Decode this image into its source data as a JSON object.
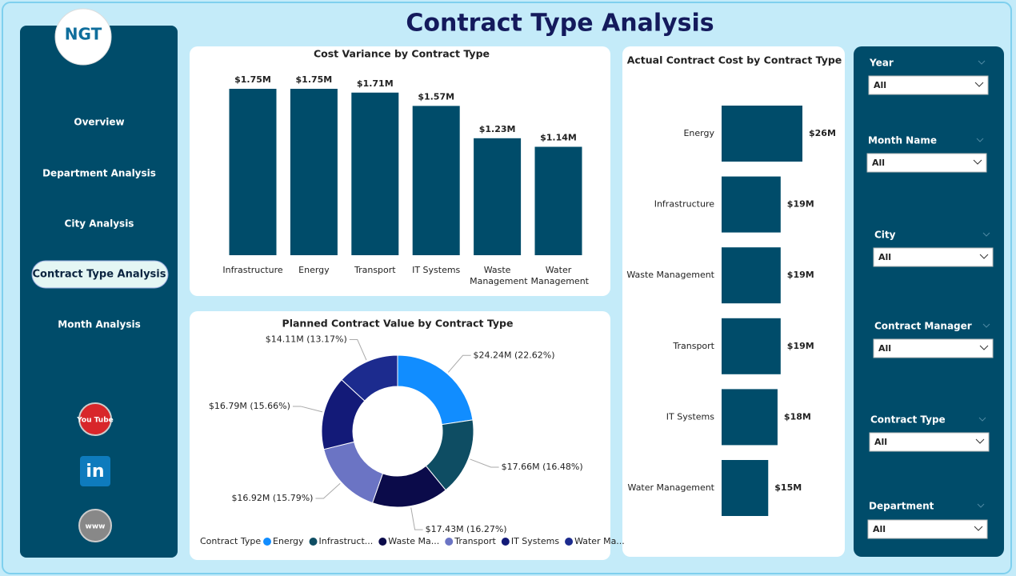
{
  "title": "Contract Type Analysis",
  "logo": {
    "text": "NGT"
  },
  "nav": [
    "Overview",
    "Department Analysis",
    "City Analysis",
    "Contract Type Analysis",
    "Month Analysis"
  ],
  "icons": [
    "You Tube",
    "in",
    "www"
  ],
  "filters": [
    {
      "label": "Year",
      "value": "All"
    },
    {
      "label": "Month Name",
      "value": "All"
    },
    {
      "label": "City",
      "value": "All"
    },
    {
      "label": "Contract Manager",
      "value": "All"
    },
    {
      "label": "Contract Type",
      "value": "All"
    },
    {
      "label": "Department",
      "value": "All"
    }
  ],
  "chart_data": [
    {
      "type": "bar",
      "title": "Cost Variance by Contract Type",
      "color": "#004c6a",
      "categories": [
        "Infrastructure",
        "Energy",
        "Transport",
        "IT Systems",
        "Waste Management",
        "Water Management"
      ],
      "values": [
        1.75,
        1.75,
        1.71,
        1.57,
        1.23,
        1.14
      ],
      "value_labels": [
        "$1.75M",
        "$1.75M",
        "$1.71M",
        "$1.57M",
        "$1.23M",
        "$1.14M"
      ]
    },
    {
      "type": "barh",
      "title": "Actual Contract Cost by Contract Type",
      "color": "#004c6a",
      "categories": [
        "Energy",
        "Infrastructure",
        "Waste Management",
        "Transport",
        "IT Systems",
        "Water Management"
      ],
      "values": [
        26,
        19,
        19,
        19,
        18,
        15
      ],
      "value_labels": [
        "$26M",
        "$19M",
        "$19M",
        "$19M",
        "$18M",
        "$15M"
      ]
    },
    {
      "type": "donut",
      "title": "Planned Contract Value by Contract Type",
      "legend_title": "Contract Type",
      "categories": [
        "Energy",
        "Infrastruct...",
        "Waste Ma...",
        "Transport",
        "IT Systems",
        "Water Ma..."
      ],
      "colors": [
        "#118dff",
        "#0e4d63",
        "#0b0b4a",
        "#6b74c4",
        "#131a78",
        "#1c2b8e"
      ],
      "values": [
        24.24,
        17.66,
        17.43,
        16.92,
        16.79,
        14.11
      ],
      "value_labels": [
        "$24.24M (22.62%)",
        "$17.66M (16.48%)",
        "$17.43M (16.27%)",
        "$16.92M (15.79%)",
        "$16.79M (15.66%)",
        "$14.11M (13.17%)"
      ]
    }
  ]
}
